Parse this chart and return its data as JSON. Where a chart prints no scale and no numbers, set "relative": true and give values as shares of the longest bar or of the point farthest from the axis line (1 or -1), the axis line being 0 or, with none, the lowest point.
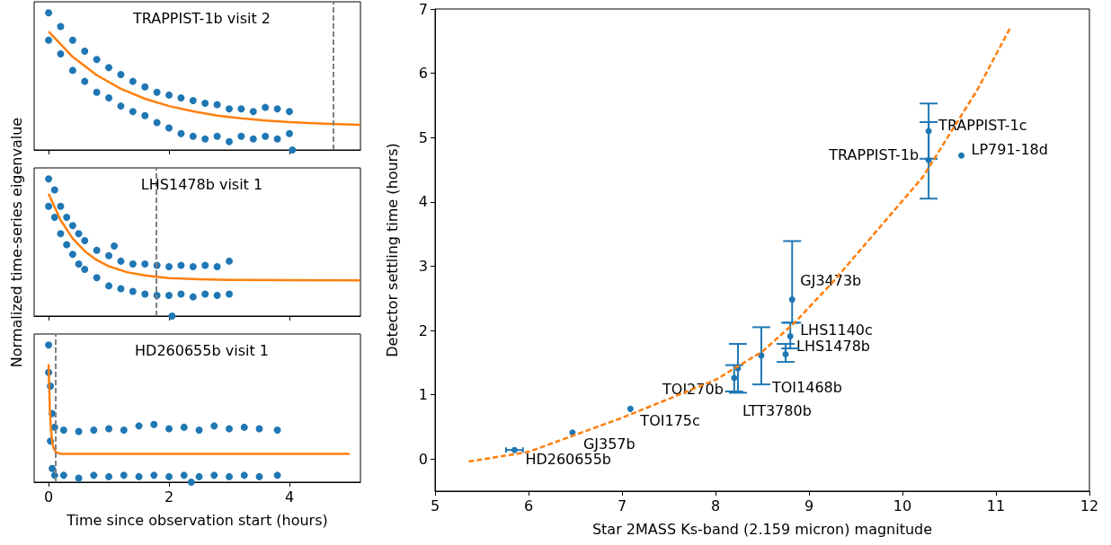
{
  "chart_data": [
    {
      "type": "line",
      "title": "TRAPPIST-1b visit 2",
      "relative": true,
      "tick_labels": false,
      "xlim": [
        -0.24,
        5.18
      ],
      "xticks": [
        0,
        2,
        4
      ],
      "ref_lines": [
        {
          "axis": "x",
          "value": 4.73,
          "color": "#808080",
          "line_style": "dashed"
        }
      ],
      "series": [
        {
          "type": "scatter",
          "marker": "circle",
          "color": "#1f77b4",
          "x": [
            0,
            0,
            0.2,
            0.2,
            0.4,
            0.4,
            0.6,
            0.6,
            0.8,
            0.8,
            1,
            1,
            1.2,
            1.2,
            1.4,
            1.4,
            1.6,
            1.6,
            1.8,
            1.8,
            2,
            2,
            2.2,
            2.2,
            2.4,
            2.4,
            2.6,
            2.6,
            2.8,
            2.8,
            3,
            3,
            3.2,
            3.2,
            3.4,
            3.4,
            3.6,
            3.6,
            3.8,
            3.8,
            4,
            4,
            4.05
          ],
          "values": [
            1,
            0.8,
            0.9,
            0.7,
            0.8,
            0.58,
            0.72,
            0.5,
            0.66,
            0.42,
            0.6,
            0.38,
            0.55,
            0.32,
            0.5,
            0.28,
            0.46,
            0.25,
            0.42,
            0.2,
            0.4,
            0.16,
            0.38,
            0.12,
            0.36,
            0.1,
            0.34,
            0.08,
            0.33,
            0.1,
            0.3,
            0.06,
            0.3,
            0.1,
            0.28,
            0.08,
            0.31,
            0.1,
            0.3,
            0.08,
            0.28,
            0.12,
            0
          ]
        },
        {
          "color": "#ff7f0e",
          "marker": "none",
          "line_style": "solid",
          "x": [
            0,
            0.4,
            0.8,
            1.2,
            1.6,
            2,
            2.4,
            2.8,
            3.2,
            3.6,
            4,
            4.4,
            4.8,
            5.18
          ],
          "values": [
            0.863,
            0.679,
            0.545,
            0.446,
            0.373,
            0.32,
            0.281,
            0.251,
            0.23,
            0.215,
            0.203,
            0.195,
            0.188,
            0.184
          ]
        }
      ]
    },
    {
      "type": "line",
      "title": "LHS1478b visit 1",
      "ylabel": "Normalized time-series eigenvalue",
      "relative": true,
      "tick_labels": false,
      "xlim": [
        -0.24,
        5.18
      ],
      "xticks": [
        0,
        2,
        4
      ],
      "ref_lines": [
        {
          "axis": "x",
          "value": 1.78,
          "color": "#808080",
          "line_style": "dashed"
        }
      ],
      "series": [
        {
          "type": "scatter",
          "marker": "circle",
          "color": "#1f77b4",
          "x": [
            0,
            0,
            0.1,
            0.1,
            0.2,
            0.2,
            0.3,
            0.3,
            0.4,
            0.4,
            0.5,
            0.5,
            0.58,
            0.6,
            0.6,
            0.8,
            0.8,
            1,
            1,
            1.09,
            1.2,
            1.2,
            1.4,
            1.4,
            1.6,
            1.6,
            1.8,
            1.8,
            2,
            2,
            2.05,
            2.2,
            2.2,
            2.4,
            2.4,
            2.6,
            2.6,
            2.8,
            2.8,
            3,
            3
          ],
          "values": [
            1,
            0.8,
            0.92,
            0.72,
            0.8,
            0.6,
            0.72,
            0.52,
            0.66,
            0.45,
            0.6,
            0.38,
            null,
            0.55,
            0.34,
            0.48,
            0.28,
            0.44,
            0.22,
            0.51,
            0.4,
            0.2,
            0.38,
            0.18,
            0.38,
            0.16,
            0.37,
            0.15,
            0.36,
            0.15,
            0,
            0.37,
            0.16,
            0.36,
            0.14,
            0.37,
            0.16,
            0.36,
            0.15,
            0.4,
            0.16
          ]
        },
        {
          "color": "#ff7f0e",
          "marker": "none",
          "line_style": "solid",
          "x": [
            0,
            0.2,
            0.4,
            0.6,
            0.8,
            1,
            1.3,
            1.6,
            2,
            2.5,
            3,
            4,
            5.18
          ],
          "values": [
            0.891,
            0.699,
            0.565,
            0.473,
            0.408,
            0.363,
            0.32,
            0.296,
            0.277,
            0.268,
            0.264,
            0.262,
            0.261
          ]
        }
      ]
    },
    {
      "type": "line",
      "title": "HD260655b visit 1",
      "xlabel": "Time since observation start (hours)",
      "relative": true,
      "tick_labels": "x",
      "xlim": [
        -0.24,
        5.18
      ],
      "xticks": [
        0,
        2,
        4
      ],
      "ref_lines": [
        {
          "axis": "x",
          "value": 0.12,
          "color": "#808080",
          "line_style": "dashed"
        }
      ],
      "series": [
        {
          "type": "scatter",
          "marker": "circle",
          "color": "#1f77b4",
          "x": [
            0,
            0,
            0.03,
            0.03,
            0.06,
            0.06,
            0.1,
            0.1,
            0.25,
            0.25,
            0.5,
            0.5,
            0.75,
            0.75,
            1,
            1,
            1.25,
            1.25,
            1.5,
            1.5,
            1.75,
            1.75,
            2,
            2,
            2.25,
            2.25,
            2.37,
            2.5,
            2.5,
            2.75,
            2.75,
            3,
            3,
            3.25,
            3.25,
            3.5,
            3.5,
            3.8,
            3.8
          ],
          "values": [
            1,
            0.8,
            0.7,
            0.3,
            0.5,
            0.1,
            0.4,
            0.05,
            0.38,
            0.05,
            0.37,
            0.03,
            0.38,
            0.05,
            0.39,
            0.04,
            0.38,
            0.05,
            0.41,
            0.04,
            0.42,
            0.05,
            0.39,
            0.04,
            0.4,
            0.05,
            0,
            0.38,
            0.04,
            0.41,
            0.05,
            0.39,
            0.04,
            0.4,
            0.05,
            0.39,
            0.04,
            0.38,
            0.05
          ]
        },
        {
          "color": "#ff7f0e",
          "marker": "none",
          "line_style": "solid",
          "x": [
            0,
            0.02,
            0.04,
            0.06,
            0.08,
            0.12,
            0.2,
            5
          ],
          "values": [
            0.859,
            0.541,
            0.378,
            0.294,
            0.251,
            0.218,
            0.207,
            0.206
          ]
        }
      ]
    },
    {
      "type": "scatter",
      "xlabel": "Star 2MASS Ks-band (2.159 micron) magnitude",
      "ylabel": "Detector settling time (hours)",
      "marker": "circle",
      "xlim": [
        5,
        12
      ],
      "xticks": [
        5,
        6,
        7,
        8,
        9,
        10,
        11,
        12
      ],
      "ylim": [
        -0.5,
        7
      ],
      "yticks": [
        0,
        1,
        2,
        3,
        4,
        5,
        6,
        7
      ],
      "series": [
        {
          "color": "#1f77b4",
          "x": [
            5.85,
            6.47,
            7.09,
            8.2,
            8.24,
            8.49,
            8.75,
            8.8,
            8.82,
            10.28,
            10.28,
            10.63
          ],
          "values": [
            0.14,
            0.41,
            0.78,
            1.26,
            1.41,
            1.61,
            1.63,
            1.91,
            2.48,
            4.65,
            5.1,
            4.72
          ],
          "errors": [
            null,
            null,
            null,
            [
              1.05,
              1.46
            ],
            [
              1.03,
              1.79
            ],
            [
              1.16,
              2.05
            ],
            [
              1.51,
              1.79
            ],
            [
              1.72,
              2.12
            ],
            [
              2.12,
              3.39
            ],
            [
              4.05,
              5.24
            ],
            [
              4.67,
              5.53
            ],
            null
          ],
          "xerrors": [
            0.09,
            null,
            null,
            null,
            null,
            null,
            null,
            null,
            null,
            null,
            null,
            null
          ]
        },
        {
          "type": "line",
          "color": "#ff7f0e",
          "marker": "none",
          "line_style": "dashed",
          "x": [
            5.36,
            6,
            7,
            8,
            8.5,
            8.84,
            9.26,
            10.22,
            10.8,
            11.15
          ],
          "values": [
            -0.04,
            0.11,
            0.64,
            1.23,
            1.67,
            2.11,
            2.76,
            4.39,
            5.74,
            6.7
          ]
        }
      ],
      "annotations": [
        {
          "text": "HD260655b",
          "x": 5.85,
          "y": 0.14
        },
        {
          "text": "GJ357b",
          "x": 6.47,
          "y": 0.41
        },
        {
          "text": "TOI175c",
          "x": 7.09,
          "y": 0.78
        },
        {
          "text": "TOI270b",
          "x": 8.2,
          "y": 1.26
        },
        {
          "text": "LTT3780b",
          "x": 8.24,
          "y": 1.41
        },
        {
          "text": "TOI1468b",
          "x": 8.49,
          "y": 1.61
        },
        {
          "text": "LHS1478b",
          "x": 8.75,
          "y": 1.63
        },
        {
          "text": "LHS1140c",
          "x": 8.8,
          "y": 1.91
        },
        {
          "text": "GJ3473b",
          "x": 8.82,
          "y": 2.48
        },
        {
          "text": "TRAPPIST-1b",
          "x": 10.28,
          "y": 4.65
        },
        {
          "text": "TRAPPIST-1c",
          "x": 10.28,
          "y": 5.1
        },
        {
          "text": "LP791-18d",
          "x": 10.63,
          "y": 4.72
        }
      ]
    }
  ]
}
